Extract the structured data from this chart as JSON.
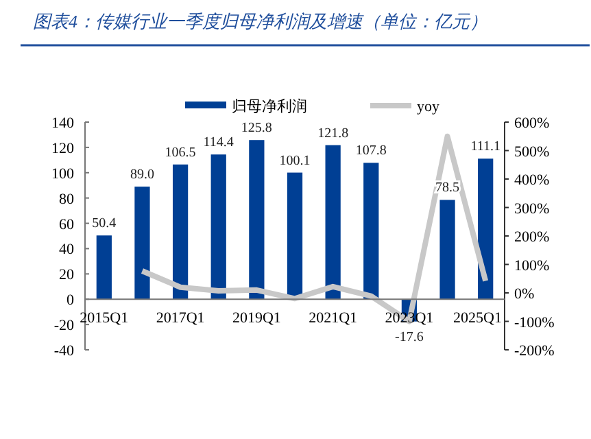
{
  "chart_data": {
    "type": "bar",
    "title": "图表4：传媒行业一季度归母净利润及增速（单位：亿元）",
    "categories": [
      "2015Q1",
      null,
      "2017Q1",
      null,
      "2019Q1",
      null,
      "2021Q1",
      null,
      "2023Q1",
      null,
      "2025Q1"
    ],
    "series": [
      {
        "name": "归母净利润",
        "color": "#003f94",
        "values": [
          50.4,
          89.0,
          106.5,
          114.4,
          125.8,
          100.1,
          121.8,
          107.8,
          -17.6,
          78.5,
          111.1
        ],
        "value_labels": [
          "50.4",
          "89.0",
          "106.5",
          "114.4",
          "125.8",
          "100.1",
          "121.8",
          "107.8",
          "-17.6",
          "78.5",
          "111.1"
        ]
      },
      {
        "name": "yoy",
        "type": "line",
        "axis": "y2",
        "color": "#c8c8c8",
        "values": [
          null,
          77,
          20,
          7,
          10,
          -20,
          22,
          -11,
          -100,
          550,
          42
        ]
      }
    ],
    "ylim": [
      -40,
      140
    ],
    "yticks": [
      -40,
      -20,
      0,
      20,
      40,
      60,
      80,
      100,
      120,
      140
    ],
    "y2lim": [
      -200,
      600
    ],
    "y2ticks": [
      {
        "value": -200,
        "label": "-200%"
      },
      {
        "value": -100,
        "label": "-100%"
      },
      {
        "value": 0,
        "label": "0%"
      },
      {
        "value": 100,
        "label": "100%"
      },
      {
        "value": 200,
        "label": "200%"
      },
      {
        "value": 300,
        "label": "300%"
      },
      {
        "value": 400,
        "label": "400%"
      },
      {
        "value": 500,
        "label": "500%"
      },
      {
        "value": 600,
        "label": "600%"
      }
    ],
    "legend": "top",
    "grid": false
  }
}
